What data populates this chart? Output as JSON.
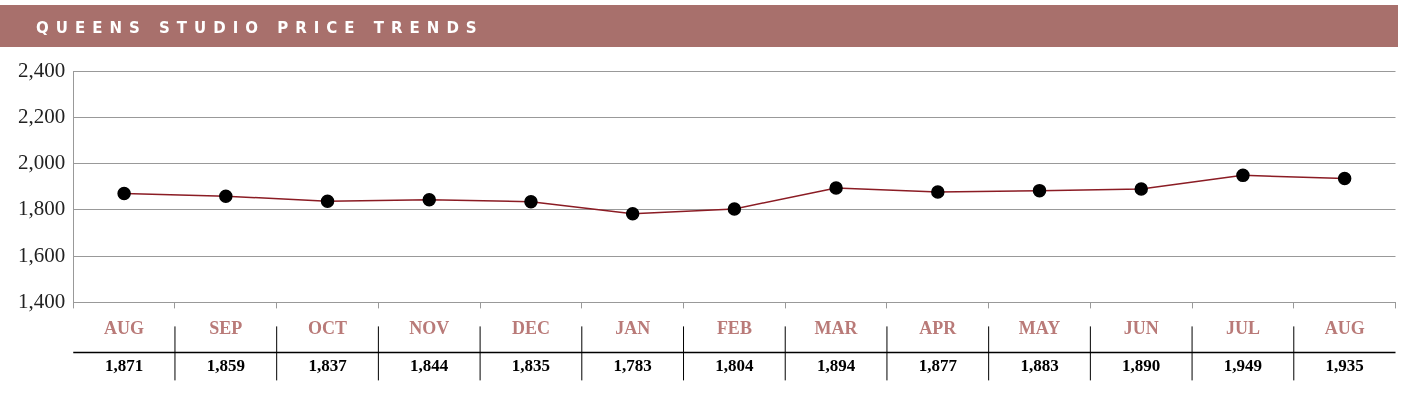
{
  "chart_data": {
    "type": "line",
    "title": "QUEENS STUDIO PRICE TRENDS",
    "categories": [
      "AUG",
      "SEP",
      "OCT",
      "NOV",
      "DEC",
      "JAN",
      "FEB",
      "MAR",
      "APR",
      "MAY",
      "JUN",
      "JUL",
      "AUG"
    ],
    "values": [
      1871,
      1859,
      1837,
      1844,
      1835,
      1783,
      1804,
      1894,
      1877,
      1883,
      1890,
      1949,
      1935
    ],
    "value_labels": [
      "1,871",
      "1,859",
      "1,837",
      "1,844",
      "1,835",
      "1,783",
      "1,804",
      "1,894",
      "1,877",
      "1,883",
      "1,890",
      "1,949",
      "1,935"
    ],
    "color": "#8b1c24",
    "marker": "circle",
    "grid": "y",
    "ylim": [
      1400,
      2400
    ],
    "yticks": [
      {
        "value": 1400,
        "label": "1,400"
      },
      {
        "value": 1600,
        "label": "1,600"
      },
      {
        "value": 1800,
        "label": "1,800"
      },
      {
        "value": 2000,
        "label": "2,000"
      },
      {
        "value": 2200,
        "label": "2,200"
      },
      {
        "value": 2400,
        "label": "2,400"
      }
    ]
  }
}
